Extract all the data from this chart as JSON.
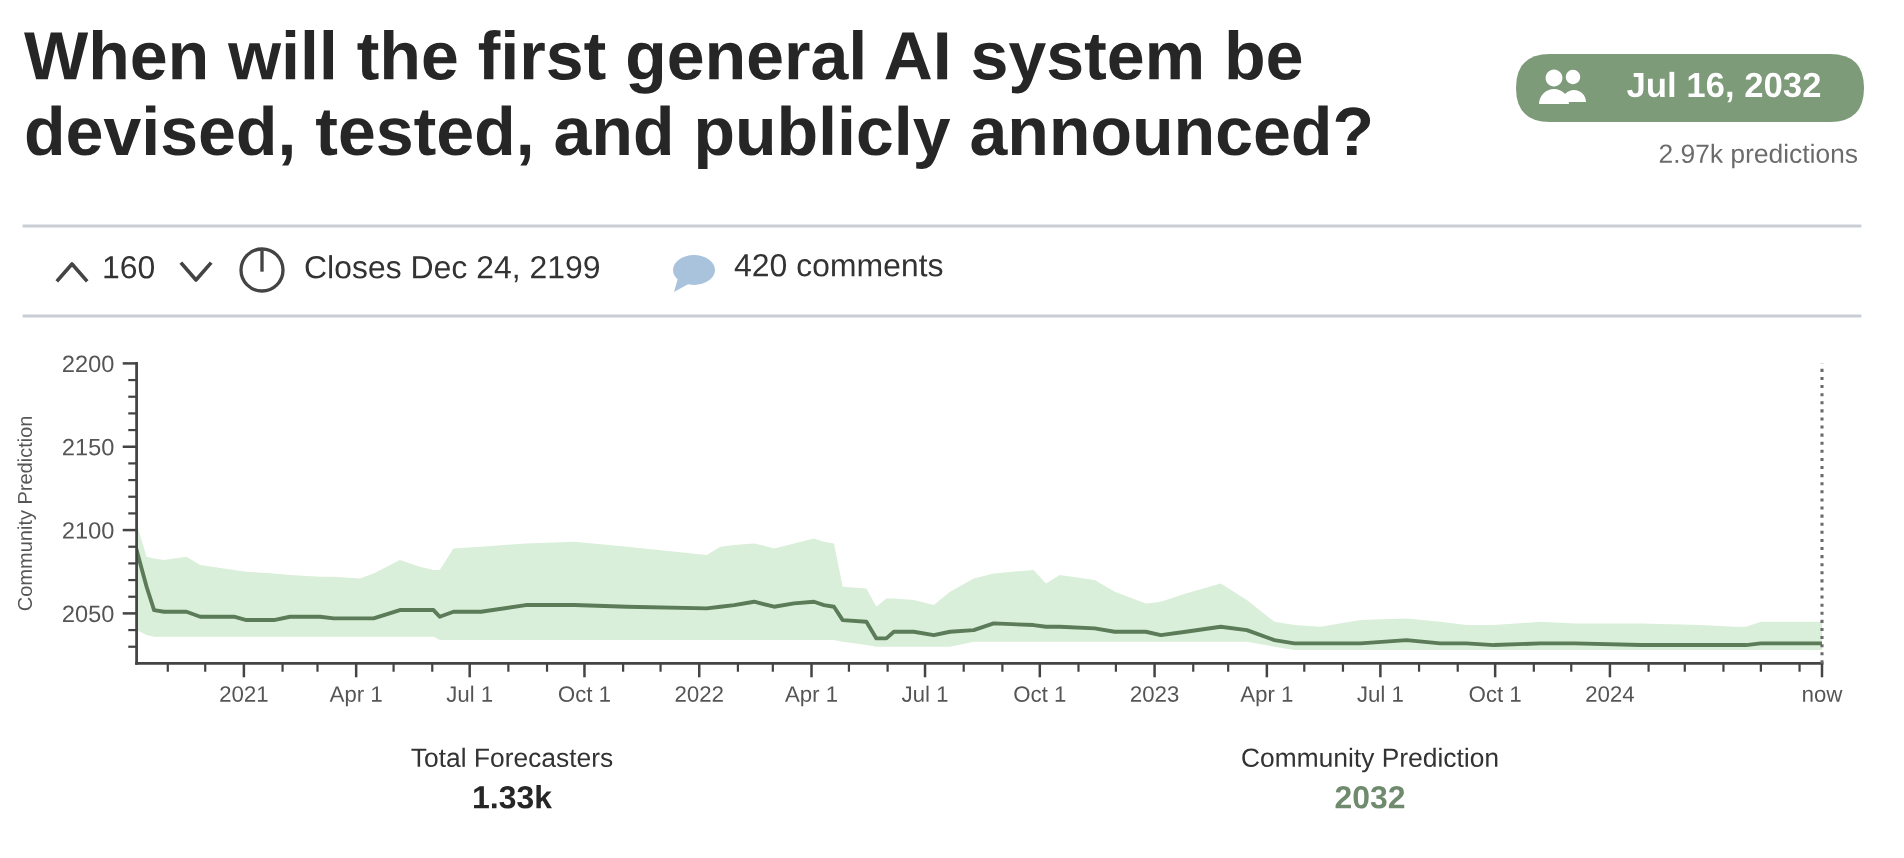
{
  "chart_data": {
    "type": "line",
    "title": "When will the first general AI system be devised, tested, and publicly announced?",
    "ylabel": "Community Prediction",
    "annotations": [
      "Jul 16, 2032",
      "2.97k predictions",
      "160",
      "Closes Dec 24, 2199",
      "420 comments",
      "Total Forecasters",
      "1.33k",
      "Community Prediction",
      "2032"
    ],
    "x": [
      "2020-10-07",
      "2020-10-15",
      "2020-10-21",
      "2020-10-29",
      "2020-11-16",
      "2020-11-27",
      "2020-12-24",
      "2021-01-03",
      "2021-01-25",
      "2021-02-07",
      "2021-03-03",
      "2021-03-14",
      "2021-04-04",
      "2021-04-15",
      "2021-05-06",
      "2021-05-22",
      "2021-06-02",
      "2021-06-07",
      "2021-06-18",
      "2021-07-10",
      "2021-08-15",
      "2021-09-23",
      "2021-11-04",
      "2022-01-07",
      "2022-01-18",
      "2022-01-29",
      "2022-02-14",
      "2022-03-02",
      "2022-03-18",
      "2022-04-03",
      "2022-04-11",
      "2022-04-19",
      "2022-04-26",
      "2022-05-15",
      "2022-05-23",
      "2022-05-31",
      "2022-06-06",
      "2022-06-22",
      "2022-07-08",
      "2022-07-21",
      "2022-08-09",
      "2022-08-25",
      "2022-09-26",
      "2022-10-06",
      "2022-10-17",
      "2022-11-14",
      "2022-11-30",
      "2022-12-25",
      "2023-01-06",
      "2023-01-26",
      "2023-02-23",
      "2023-03-16",
      "2023-04-07",
      "2023-04-23",
      "2023-05-14",
      "2023-06-15",
      "2023-07-22",
      "2023-08-18",
      "2023-09-08",
      "2023-09-30",
      "2023-11-06",
      "2023-12-04",
      "2024-01-26",
      "2024-03-14",
      "2024-04-10",
      "2024-04-19",
      "2024-05-01",
      "2024-06-19"
    ],
    "series": [
      {
        "color": "#5b7b59",
        "values": [
          2088,
          2066,
          2052,
          2051,
          2051,
          2048,
          2048,
          2046,
          2046,
          2048,
          2048,
          2047,
          2047,
          2047,
          2052,
          2052,
          2052,
          2048,
          2051,
          2051,
          2055,
          2055,
          2054,
          2053,
          2054,
          2055,
          2057,
          2054,
          2056,
          2057,
          2055,
          2054,
          2046,
          2045,
          2035,
          2035,
          2039,
          2039,
          2037,
          2039,
          2040,
          2044,
          2043,
          2042,
          2042,
          2041,
          2039,
          2039,
          2037,
          2039,
          2042,
          2040,
          2034,
          2032,
          2032,
          2032,
          2034,
          2032,
          2032,
          2031,
          2032,
          2032,
          2031,
          2031,
          2031,
          2031,
          2032,
          2032
        ],
        "upper": [
          2104,
          2084,
          2083,
          2082,
          2084,
          2079,
          2076,
          2075,
          2074,
          2073,
          2072,
          2072,
          2071,
          2074,
          2082,
          2078,
          2076,
          2076,
          2089,
          2090,
          2092,
          2093,
          2090,
          2085,
          2090,
          2091,
          2092,
          2089,
          2092,
          2095,
          2093,
          2092,
          2066,
          2065,
          2054,
          2059,
          2059,
          2058,
          2055,
          2063,
          2071,
          2074,
          2076,
          2068,
          2073,
          2070,
          2063,
          2056,
          2057,
          2062,
          2068,
          2058,
          2045,
          2043,
          2042,
          2046,
          2047,
          2045,
          2043,
          2043,
          2045,
          2044,
          2044,
          2043,
          2042,
          2042,
          2045,
          2045
        ],
        "lower": [
          2040,
          2037,
          2036,
          2036,
          2036,
          2036,
          2036,
          2036,
          2036,
          2036,
          2036,
          2036,
          2036,
          2036,
          2036,
          2036,
          2036,
          2034,
          2034,
          2034,
          2034,
          2034,
          2034,
          2034,
          2034,
          2034,
          2034,
          2034,
          2034,
          2034,
          2034,
          2034,
          2033,
          2031,
          2030,
          2030,
          2030,
          2030,
          2030,
          2030,
          2033,
          2033,
          2033,
          2033,
          2033,
          2033,
          2033,
          2033,
          2033,
          2033,
          2033,
          2033,
          2030,
          2028,
          2028,
          2028,
          2028,
          2028,
          2028,
          2028,
          2028,
          2028,
          2028,
          2028,
          2028,
          2028,
          2028,
          2028
        ]
      }
    ],
    "line_style": "solid",
    "xlim": [
      "2020-10-07",
      "2024-06-19"
    ],
    "ylim": [
      2020,
      2200
    ],
    "xticks": [
      {
        "value": "2020-11-01",
        "label": null
      },
      {
        "value": "2020-12-01",
        "label": null
      },
      {
        "value": "2021-01-01",
        "label": "2021"
      },
      {
        "value": "2021-02-01",
        "label": null
      },
      {
        "value": "2021-03-01",
        "label": null
      },
      {
        "value": "2021-04-01",
        "label": "Apr 1"
      },
      {
        "value": "2021-05-01",
        "label": null
      },
      {
        "value": "2021-06-01",
        "label": null
      },
      {
        "value": "2021-07-01",
        "label": "Jul 1"
      },
      {
        "value": "2021-08-01",
        "label": null
      },
      {
        "value": "2021-09-01",
        "label": null
      },
      {
        "value": "2021-10-01",
        "label": "Oct 1"
      },
      {
        "value": "2021-11-01",
        "label": null
      },
      {
        "value": "2021-12-01",
        "label": null
      },
      {
        "value": "2022-01-01",
        "label": "2022"
      },
      {
        "value": "2022-02-01",
        "label": null
      },
      {
        "value": "2022-03-01",
        "label": null
      },
      {
        "value": "2022-04-01",
        "label": "Apr 1"
      },
      {
        "value": "2022-05-01",
        "label": null
      },
      {
        "value": "2022-06-01",
        "label": null
      },
      {
        "value": "2022-07-01",
        "label": "Jul 1"
      },
      {
        "value": "2022-08-01",
        "label": null
      },
      {
        "value": "2022-09-01",
        "label": null
      },
      {
        "value": "2022-10-01",
        "label": "Oct 1"
      },
      {
        "value": "2022-11-01",
        "label": null
      },
      {
        "value": "2022-12-01",
        "label": null
      },
      {
        "value": "2023-01-01",
        "label": "2023"
      },
      {
        "value": "2023-02-01",
        "label": null
      },
      {
        "value": "2023-03-01",
        "label": null
      },
      {
        "value": "2023-04-01",
        "label": "Apr 1"
      },
      {
        "value": "2023-05-01",
        "label": null
      },
      {
        "value": "2023-06-01",
        "label": null
      },
      {
        "value": "2023-07-01",
        "label": "Jul 1"
      },
      {
        "value": "2023-08-01",
        "label": null
      },
      {
        "value": "2023-09-01",
        "label": null
      },
      {
        "value": "2023-10-01",
        "label": "Oct 1"
      },
      {
        "value": "2023-11-01",
        "label": null
      },
      {
        "value": "2023-12-01",
        "label": null
      },
      {
        "value": "2024-01-01",
        "label": "2024"
      },
      {
        "value": "2024-02-01",
        "label": null
      },
      {
        "value": "2024-03-01",
        "label": null
      },
      {
        "value": "2024-04-01",
        "label": null
      },
      {
        "value": "2024-05-01",
        "label": null
      },
      {
        "value": "2024-06-01",
        "label": null
      },
      {
        "value": "2024-06-19",
        "label": "now"
      }
    ],
    "yticks": [
      {
        "value": 2030,
        "label": null
      },
      {
        "value": 2040,
        "label": null
      },
      2050,
      {
        "value": 2060,
        "label": null
      },
      {
        "value": 2070,
        "label": null
      },
      {
        "value": 2080,
        "label": null
      },
      {
        "value": 2090,
        "label": null
      },
      2100,
      {
        "value": 2110,
        "label": null
      },
      {
        "value": 2120,
        "label": null
      },
      {
        "value": 2130,
        "label": null
      },
      {
        "value": 2140,
        "label": null
      },
      2150,
      {
        "value": 2160,
        "label": null
      },
      {
        "value": 2170,
        "label": null
      },
      {
        "value": 2180,
        "label": null
      },
      {
        "value": 2190,
        "label": null
      },
      2200
    ],
    "ref_lines": [
      {
        "axis": "x",
        "value": "2024-06-19",
        "line_style": "dotted",
        "color": "#6a6a6a"
      }
    ]
  }
}
